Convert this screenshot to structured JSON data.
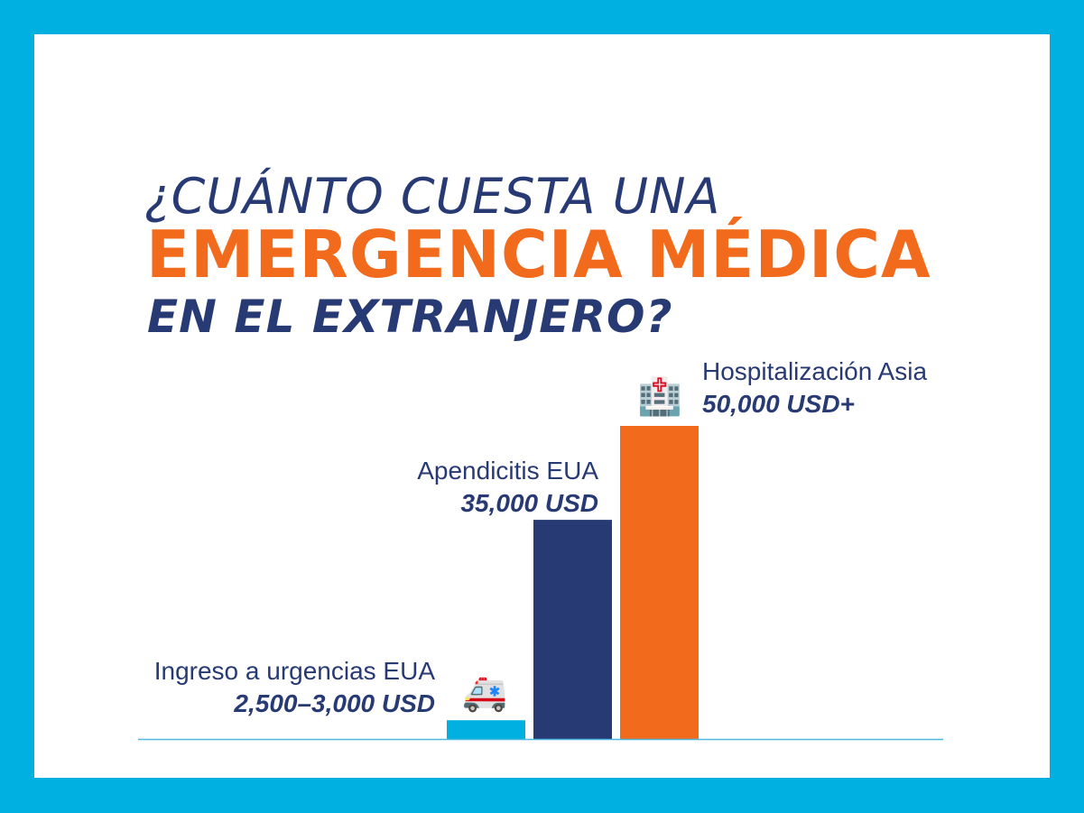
{
  "title": {
    "line1": "¿CUÁNTO CUESTA UNA",
    "line2": "EMERGENCIA MÉDICA",
    "line3": "EN EL EXTRANJERO?"
  },
  "colors": {
    "border": "#00b0e1",
    "navy": "#283a73",
    "orange": "#f26b1d",
    "cyan": "#00b0e1"
  },
  "chart_data": {
    "type": "bar",
    "categories": [
      "Ingreso a urgencias EUA",
      "Apendicitis EUA",
      "Hospitalización Asia"
    ],
    "value_labels": [
      "2,500–3,000 USD",
      "35,000 USD",
      "50,000 USD+"
    ],
    "values": [
      3000,
      35000,
      50000
    ],
    "unit": "USD",
    "bar_colors": [
      "#00b0e1",
      "#283a73",
      "#f26b1d"
    ],
    "icons": [
      "ambulance-icon",
      null,
      "hospital-icon"
    ],
    "ylim": [
      0,
      50000
    ],
    "grid": false
  }
}
